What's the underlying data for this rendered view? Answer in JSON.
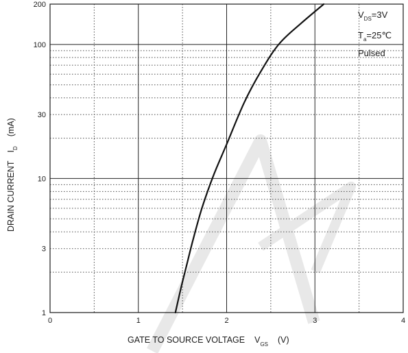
{
  "chart_data": {
    "type": "line",
    "xlabel": "GATE TO SOURCE VOLTAGE",
    "xlabel_symbol": "V",
    "xlabel_symbol_sub": "GS",
    "xlabel_unit": "(V)",
    "ylabel": "DRAIN CURRENT",
    "ylabel_symbol": "I",
    "ylabel_symbol_sub": "D",
    "ylabel_unit": "(mA)",
    "xlim": [
      0,
      4
    ],
    "ylim": [
      1,
      200
    ],
    "y_scale": "log",
    "grid": true,
    "x_ticks": [
      {
        "value": 0,
        "label": "0"
      },
      {
        "value": 1,
        "label": "1"
      },
      {
        "value": 2,
        "label": "2"
      },
      {
        "value": 3,
        "label": "3"
      },
      {
        "value": 4,
        "label": "4"
      }
    ],
    "y_ticks": [
      {
        "value": 1,
        "label": "1"
      },
      {
        "value": 3,
        "label": "3"
      },
      {
        "value": 10,
        "label": "10"
      },
      {
        "value": 30,
        "label": "30"
      },
      {
        "value": 100,
        "label": "100"
      },
      {
        "value": 200,
        "label": "200"
      }
    ],
    "conditions": {
      "vds": {
        "symbol": "V",
        "sub": "DS",
        "value": "=3V"
      },
      "ta": {
        "symbol": "T",
        "sub": "a",
        "value": "=25℃"
      },
      "mode": "Pulsed"
    },
    "series": [
      {
        "x": [
          1.42,
          1.48,
          1.55,
          1.62,
          1.72,
          1.85,
          2.0,
          2.2,
          2.4,
          2.6,
          2.85,
          3.1
        ],
        "y": [
          1.0,
          1.5,
          2.3,
          3.5,
          6.0,
          10.5,
          18.0,
          37.0,
          65.0,
          102.0,
          145.0,
          200.0
        ]
      }
    ],
    "colors": {
      "line": "#111111",
      "grid": "#222222",
      "watermark": "#d9d9d9"
    }
  }
}
